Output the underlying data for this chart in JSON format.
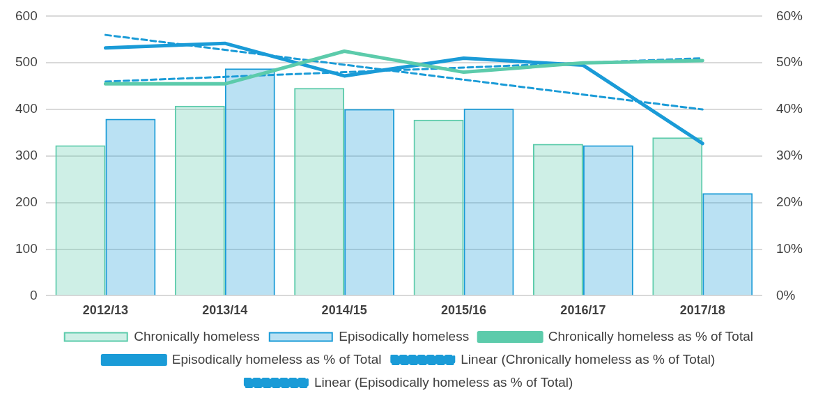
{
  "chart_data": {
    "type": "bar",
    "categories": [
      "2012/13",
      "2013/14",
      "2014/15",
      "2015/16",
      "2016/17",
      "2017/18"
    ],
    "series": [
      {
        "name": "Chronically homeless",
        "color": "#5ccbab",
        "values": [
          323,
          408,
          446,
          378,
          326,
          340
        ]
      },
      {
        "name": "Episodically homeless",
        "color": "#1a9bd7",
        "values": [
          380,
          488,
          401,
          402,
          323,
          220
        ]
      },
      {
        "name": "Chronically homeless as % of Total",
        "type": "line",
        "axis": "y2",
        "color": "#5ccbab",
        "line_style": "solid",
        "values": [
          45.5,
          45.5,
          52.5,
          48,
          50,
          50.5
        ]
      },
      {
        "name": "Episodically homeless as % of Total",
        "type": "line",
        "axis": "y2",
        "color": "#1a9bd7",
        "line_style": "solid",
        "values": [
          53.2,
          54.2,
          47.2,
          51,
          49.5,
          32.7
        ]
      },
      {
        "name": "Linear (Chronically homeless as % of Total)",
        "type": "line",
        "axis": "y2",
        "color": "#1a9bd7",
        "line_style": "dashed",
        "values": [
          46,
          47,
          48,
          49,
          50,
          51
        ]
      },
      {
        "name": "Linear (Episodically homeless as % of Total)",
        "type": "line",
        "axis": "y2",
        "color": "#1a9bd7",
        "line_style": "dashed",
        "values": [
          56,
          52.8,
          49.6,
          46.4,
          43.2,
          40
        ]
      }
    ],
    "ylim": [
      0,
      600
    ],
    "yticks": [
      0,
      100,
      200,
      300,
      400,
      500,
      600
    ],
    "y2lim": [
      0,
      60
    ],
    "y2ticks": [
      {
        "value": 0,
        "label": "0%"
      },
      {
        "value": 10,
        "label": "10%"
      },
      {
        "value": 20,
        "label": "20%"
      },
      {
        "value": 30,
        "label": "30%"
      },
      {
        "value": 40,
        "label": "40%"
      },
      {
        "value": 50,
        "label": "50%"
      },
      {
        "value": 60,
        "label": "60%"
      }
    ],
    "grid": "y",
    "legend": "bottom",
    "marker": "none"
  }
}
